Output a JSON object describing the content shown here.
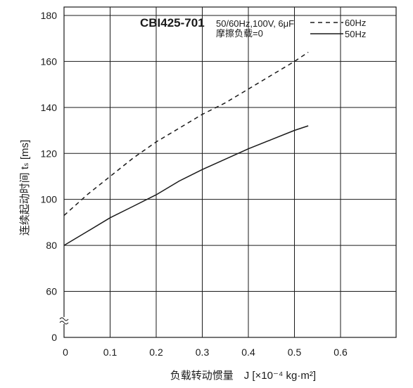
{
  "chart_data": {
    "type": "line",
    "title": "",
    "model_label": "CBI425-701",
    "conditions": [
      "50/60Hz,100V, 6μF",
      "摩擦负载=0"
    ],
    "xlabel": "负载转动惯量　J [×10⁻⁴ kg·m²]",
    "ylabel": "连续起动时间 tₛ [ms]",
    "xlim": [
      0,
      0.7
    ],
    "ylim_display": [
      0,
      180
    ],
    "y_axis_break": {
      "between": [
        0,
        60
      ],
      "note": "axis broken below 60"
    },
    "x_ticks": [
      0,
      0.1,
      0.2,
      0.3,
      0.4,
      0.5,
      0.6
    ],
    "x_tick_labels": [
      "0",
      "0.1",
      "0.2",
      "0.3",
      "0.4",
      "0.5",
      "0.6"
    ],
    "y_ticks": [
      0,
      60,
      80,
      100,
      120,
      140,
      160,
      180
    ],
    "y_tick_labels": [
      "0",
      "60",
      "80",
      "100",
      "120",
      "140",
      "160",
      "180"
    ],
    "grid": true,
    "legend_position": "top-right",
    "series": [
      {
        "name": "60Hz",
        "style": "dashed",
        "x": [
          0,
          0.05,
          0.1,
          0.15,
          0.2,
          0.25,
          0.3,
          0.35,
          0.4,
          0.45,
          0.5,
          0.53
        ],
        "y": [
          93,
          102,
          110,
          118,
          125,
          131,
          137,
          142,
          148,
          154,
          160,
          164
        ]
      },
      {
        "name": "50Hz",
        "style": "solid",
        "x": [
          0,
          0.05,
          0.1,
          0.15,
          0.2,
          0.25,
          0.3,
          0.35,
          0.4,
          0.45,
          0.5,
          0.53
        ],
        "y": [
          80,
          86,
          92,
          97,
          102,
          108,
          113,
          117.5,
          122,
          126,
          130,
          132
        ]
      }
    ]
  }
}
